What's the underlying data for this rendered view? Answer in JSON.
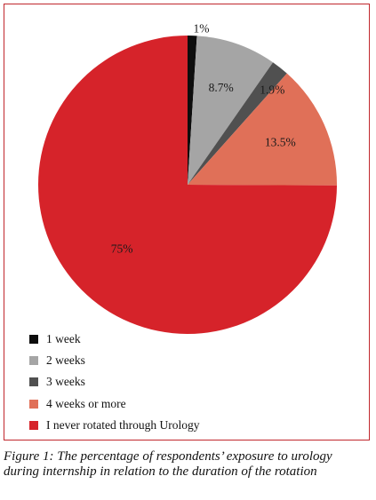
{
  "chart_data": {
    "type": "pie",
    "start_angle_deg": 0,
    "direction": "clockwise",
    "slices": [
      {
        "name": "1 week",
        "value": 1,
        "label": "1%",
        "color": "#0d0d0d"
      },
      {
        "name": "2 weeks",
        "value": 8.7,
        "label": "8.7%",
        "color": "#a5a5a5"
      },
      {
        "name": "3 weeks",
        "value": 1.9,
        "label": "1.9%",
        "color": "#505050"
      },
      {
        "name": "4 weeks or more",
        "value": 13.5,
        "label": "13.5%",
        "color": "#e07058"
      },
      {
        "name": "I never rotated through Urology",
        "value": 75,
        "label": "75%",
        "color": "#d6232a"
      }
    ],
    "legend_placement": "bottom-left"
  },
  "legend": [
    {
      "label": "1 week",
      "color": "#0d0d0d"
    },
    {
      "label": "2 weeks",
      "color": "#a5a5a5"
    },
    {
      "label": "3 weeks",
      "color": "#505050"
    },
    {
      "label": "4 weeks or more",
      "color": "#e07058"
    },
    {
      "label": "I never rotated through Urology",
      "color": "#d6232a"
    }
  ],
  "caption": "Figure 1: The percentage of respondents’ exposure to urology during internship in relation to the duration of the rotation",
  "frame_color": "#c0272d"
}
